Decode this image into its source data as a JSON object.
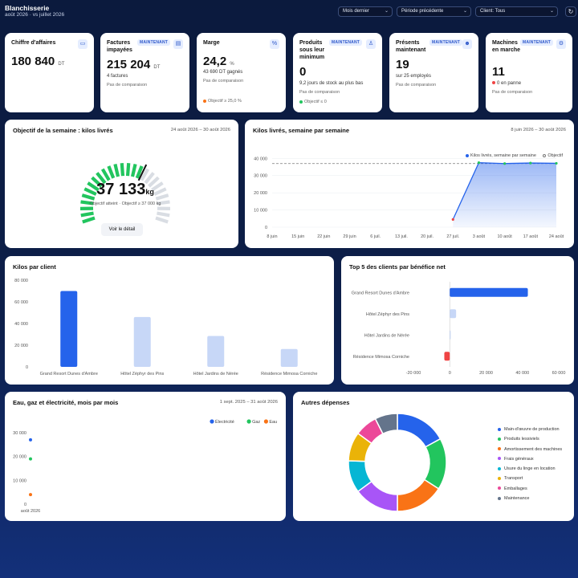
{
  "header": {
    "title": "Blanchisserie",
    "subtitle": "août 2026 · vs juillet 2026",
    "filter_period": "Mois dernier",
    "filter_compare": "Période précédente",
    "filter_client": "Client: Tous"
  },
  "kpis": {
    "revenue": {
      "title": "Chiffre d'affaires",
      "value": "180 840",
      "unit": "DT",
      "icon": "money-icon"
    },
    "invoices": {
      "title": "Factures impayées",
      "badge": "MAINTENANT",
      "value": "215 204",
      "unit": "DT",
      "sub": "4 factures",
      "foot": "Pas de comparaison",
      "icon": "document-icon"
    },
    "margin": {
      "title": "Marge",
      "value": "24,2",
      "unit": "%",
      "sub": "43 690 DT gagnés",
      "foot": "Pas de comparaison",
      "target": "Objectif ≥ 25,0 %",
      "icon": "percent-icon"
    },
    "products": {
      "title": "Produits sous leur minimum",
      "badge": "MAINTENANT",
      "value": "0",
      "sub": "9,2 jours de stock au plus bas",
      "foot": "Pas de comparaison",
      "target": "Objectif ≤ 0",
      "icon": "person-icon"
    },
    "present": {
      "title": "Présents maintenant",
      "badge": "MAINTENANT",
      "value": "19",
      "sub": "sur 25 employés",
      "foot": "Pas de comparaison",
      "icon": "people-icon"
    },
    "machines": {
      "title": "Machines en marche",
      "badge": "MAINTENANT",
      "value": "11",
      "sub": "0 en panne",
      "foot": "Pas de comparaison",
      "icon": "gear-icon"
    }
  },
  "gauge": {
    "title": "Objectif de la semaine : kilos livrés",
    "date_range": "24 août 2026 – 30 août 2026",
    "value": "37 133",
    "unit": "kg",
    "note": "Objectif atteint · Objectif ≥ 37 000 kg",
    "button": "Voir le détail",
    "fill_fraction": 0.62
  },
  "weekly": {
    "title": "Kilos livrés, semaine par semaine",
    "date_range": "8 juin 2026 – 30 août 2026",
    "legend_series": "Kilos livrés, semaine par semaine",
    "legend_target": "Objectif"
  },
  "clients": {
    "title": "Kilos par client"
  },
  "top5": {
    "title": "Top 5 des clients par bénéfice net"
  },
  "utilities": {
    "title": "Eau, gaz et électricité, mois par mois",
    "date_range": "1 sept. 2025 – 31 août 2026"
  },
  "expenses": {
    "title": "Autres dépenses"
  },
  "colors": {
    "accent": "#2563eb",
    "green": "#22c55e",
    "orange": "#f97316",
    "red": "#ef4444",
    "light_bar": "#c7d7f7"
  },
  "chart_data": [
    {
      "id": "weekly",
      "type": "area",
      "x": [
        "8 juin",
        "15 juin",
        "22 juin",
        "29 juin",
        "6 juil.",
        "13 juil.",
        "20 juil.",
        "27 juil.",
        "3 août",
        "10 août",
        "17 août",
        "24 août"
      ],
      "series": [
        {
          "name": "Kilos livrés, semaine par semaine",
          "values": [
            null,
            null,
            null,
            null,
            null,
            null,
            null,
            4500,
            37500,
            37000,
            37300,
            37133
          ]
        },
        {
          "name": "Objectif",
          "values": [
            37000,
            37000,
            37000,
            37000,
            37000,
            37000,
            37000,
            37000,
            37000,
            37000,
            37000,
            37000
          ]
        }
      ],
      "yticks": [
        "0",
        "10 000",
        "20 000",
        "30 000",
        "40 000"
      ],
      "ylim": [
        0,
        42000
      ]
    },
    {
      "id": "clients",
      "type": "bar",
      "categories": [
        "Grand Resort Dunes d'Ambre",
        "Hôtel Zéphyr des Pins",
        "Hôtel Jardins de Nérée",
        "Résidence Mimosa Corniche"
      ],
      "values": [
        70000,
        46000,
        28500,
        16500
      ],
      "yticks": [
        "0",
        "20 000",
        "40 000",
        "60 000",
        "80 000"
      ],
      "ylim": [
        0,
        80000
      ]
    },
    {
      "id": "top5",
      "type": "bar",
      "orientation": "horizontal",
      "categories": [
        "Grand Resort Dunes d'Ambre",
        "Hôtel Zéphyr des Pins",
        "Hôtel Jardins de Nérée",
        "Résidence Mimosa Corniche"
      ],
      "values": [
        43000,
        3500,
        500,
        -3000
      ],
      "xticks": [
        "-20 000",
        "0",
        "20 000",
        "40 000",
        "60 000"
      ],
      "xlim": [
        -20000,
        60000
      ]
    },
    {
      "id": "utilities",
      "type": "scatter",
      "x": [
        "août 2026"
      ],
      "series": [
        {
          "name": "Électricité",
          "values": [
            27000
          ]
        },
        {
          "name": "Gaz",
          "values": [
            19000
          ]
        },
        {
          "name": "Eau",
          "values": [
            4000
          ]
        }
      ],
      "yticks": [
        "0",
        "10 000",
        "20 000",
        "30 000"
      ],
      "ylim": [
        0,
        32000
      ]
    },
    {
      "id": "expenses",
      "type": "pie",
      "categories": [
        "Main-d'œuvre de production",
        "Produits lessiviels",
        "Amortissement des machines",
        "Frais généraux",
        "Usure du linge en location",
        "Transport",
        "Emballages",
        "Maintenance"
      ],
      "values": [
        16,
        16,
        15,
        14,
        10,
        9,
        7,
        7
      ]
    }
  ]
}
